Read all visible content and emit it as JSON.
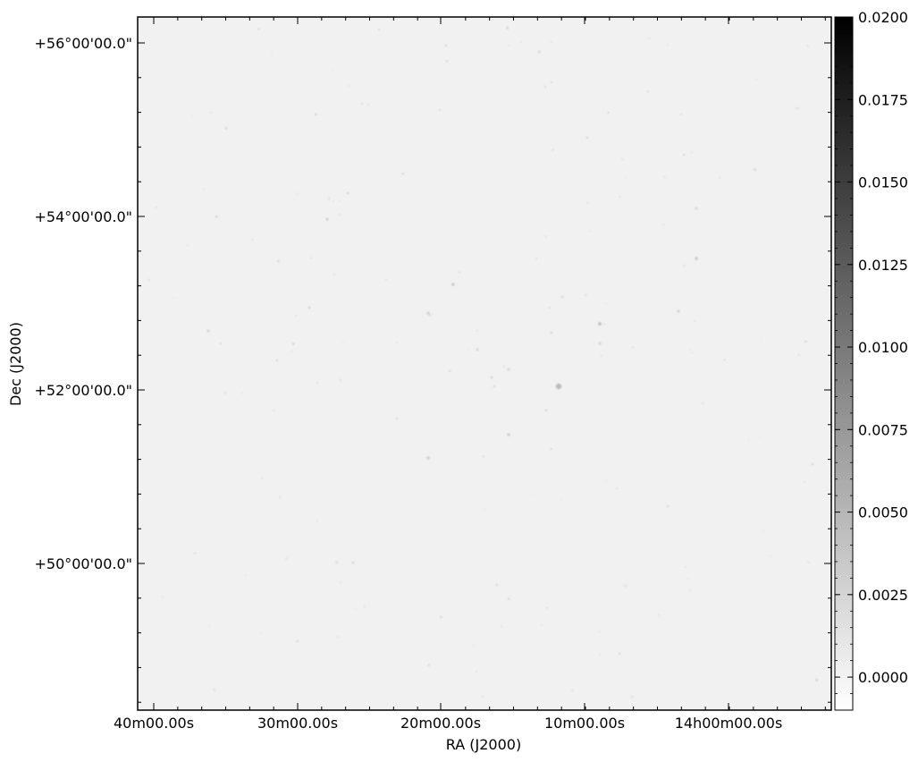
{
  "chart_data": {
    "type": "heatmap",
    "xlabel": "RA (J2000)",
    "ylabel": "Dec (J2000)",
    "x_ticks": [
      "40m00.00s",
      "30m00.00s",
      "20m00.00s",
      "10m00.00s",
      "14h00m00.00s"
    ],
    "y_ticks": [
      "+56°00'00.0\"",
      "+54°00'00.0\"",
      "+52°00'00.0\"",
      "+50°00'00.0\""
    ],
    "colorbar": {
      "min": -0.001,
      "max": 0.02,
      "ticks": [
        "0.0200",
        "0.0175",
        "0.0150",
        "0.0125",
        "0.0100",
        "0.0075",
        "0.0050",
        "0.0025",
        "0.0000"
      ],
      "tick_values": [
        0.02,
        0.0175,
        0.015,
        0.0125,
        0.01,
        0.0075,
        0.005,
        0.0025,
        0.0
      ],
      "colormap": "gray_r"
    },
    "background_color": "#f1f1f1",
    "frame_color": "#000000",
    "grid": false
  }
}
